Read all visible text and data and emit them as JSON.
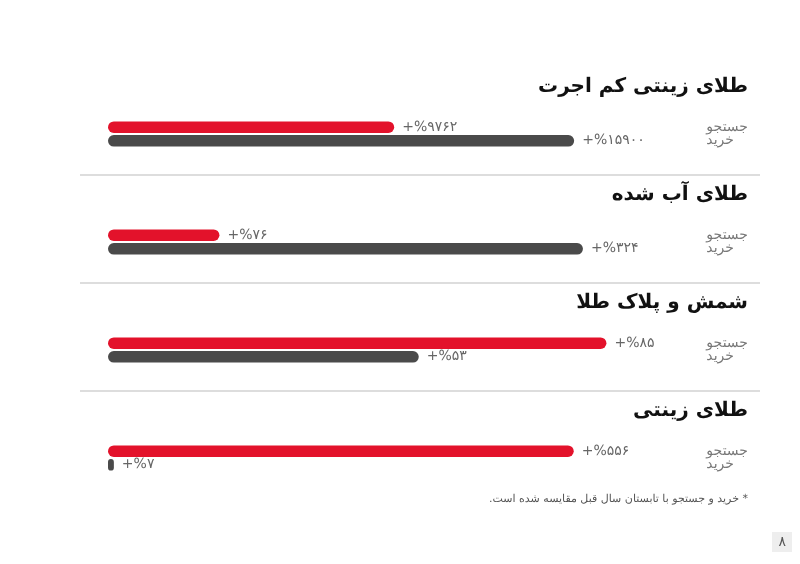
{
  "chart_data": [
    {
      "type": "bar",
      "orientation": "horizontal",
      "title": "طلای زینتی کم اجرت",
      "categories": [
        "جستجو",
        "خرید"
      ],
      "values": [
        9762,
        15900
      ],
      "colors": [
        "#e3122b",
        "#4a4a4a"
      ],
      "value_labels": [
        "+%۹۷۶۲",
        "+%۱۵۹۰۰"
      ],
      "tick_labels": "y",
      "legend": false
    },
    {
      "type": "bar",
      "orientation": "horizontal",
      "title": "طلای آب شده",
      "categories": [
        "جستجو",
        "خرید"
      ],
      "values": [
        76,
        324
      ],
      "colors": [
        "#e3122b",
        "#4a4a4a"
      ],
      "value_labels": [
        "+%۷۶",
        "+%۳۲۴"
      ],
      "tick_labels": "y",
      "legend": false
    },
    {
      "type": "bar",
      "orientation": "horizontal",
      "title": "شمش و پلاک طلا",
      "categories": [
        "جستجو",
        "خرید"
      ],
      "values": [
        85,
        53
      ],
      "colors": [
        "#e3122b",
        "#4a4a4a"
      ],
      "value_labels": [
        "+%۸۵",
        "+%۵۳"
      ],
      "tick_labels": "y",
      "legend": false
    },
    {
      "type": "bar",
      "orientation": "horizontal",
      "title": "طلای زینتی",
      "categories": [
        "جستجو",
        "خرید"
      ],
      "values": [
        556,
        7
      ],
      "colors": [
        "#e3122b",
        "#4a4a4a"
      ],
      "value_labels": [
        "+%۵۵۶",
        "+%۷"
      ],
      "tick_labels": "y",
      "legend": false,
      "annotations": [
        "* خرید و جستجو با تابستان سال قبل مقایسه شده است.",
        "۸"
      ]
    }
  ]
}
